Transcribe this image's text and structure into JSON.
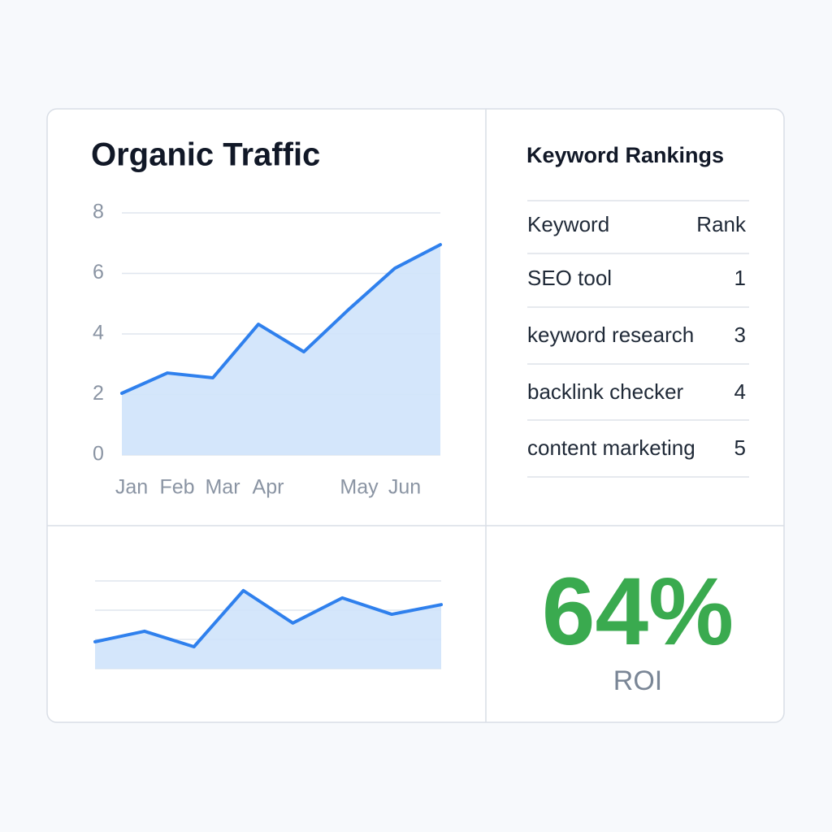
{
  "chart_data": [
    {
      "type": "area",
      "title": "Organic Traffic",
      "categories": [
        "Jan",
        "Feb",
        "Mar",
        "Apr",
        null,
        "May",
        "Jun",
        null
      ],
      "values": [
        2.04,
        2.71,
        2.55,
        4.32,
        3.41,
        4.83,
        6.17,
        6.95
      ],
      "color": "#2f80ed",
      "fill": "#cfe3fb",
      "ylim": [
        0,
        8
      ],
      "yticks": [
        0,
        2,
        4,
        6,
        8
      ],
      "grid": true
    },
    {
      "type": "area",
      "values": [
        0.92,
        1.28,
        0.75,
        2.67,
        1.56,
        2.42,
        1.86,
        2.19
      ],
      "color": "#2f80ed",
      "fill": "#cfe3fb",
      "ylim": [
        0,
        3
      ],
      "yticks": [
        0,
        1,
        2,
        3
      ],
      "grid": true
    }
  ],
  "keywords": {
    "title": "Keyword Rankings",
    "header": [
      "Keyword",
      "Rank"
    ],
    "rows": [
      [
        "SEO tool",
        "1"
      ],
      [
        "keyword research",
        "3"
      ],
      [
        "backlink checker",
        "4"
      ],
      [
        "content marketing",
        "5"
      ]
    ]
  },
  "roi": {
    "value": "64%",
    "label": "ROI"
  }
}
